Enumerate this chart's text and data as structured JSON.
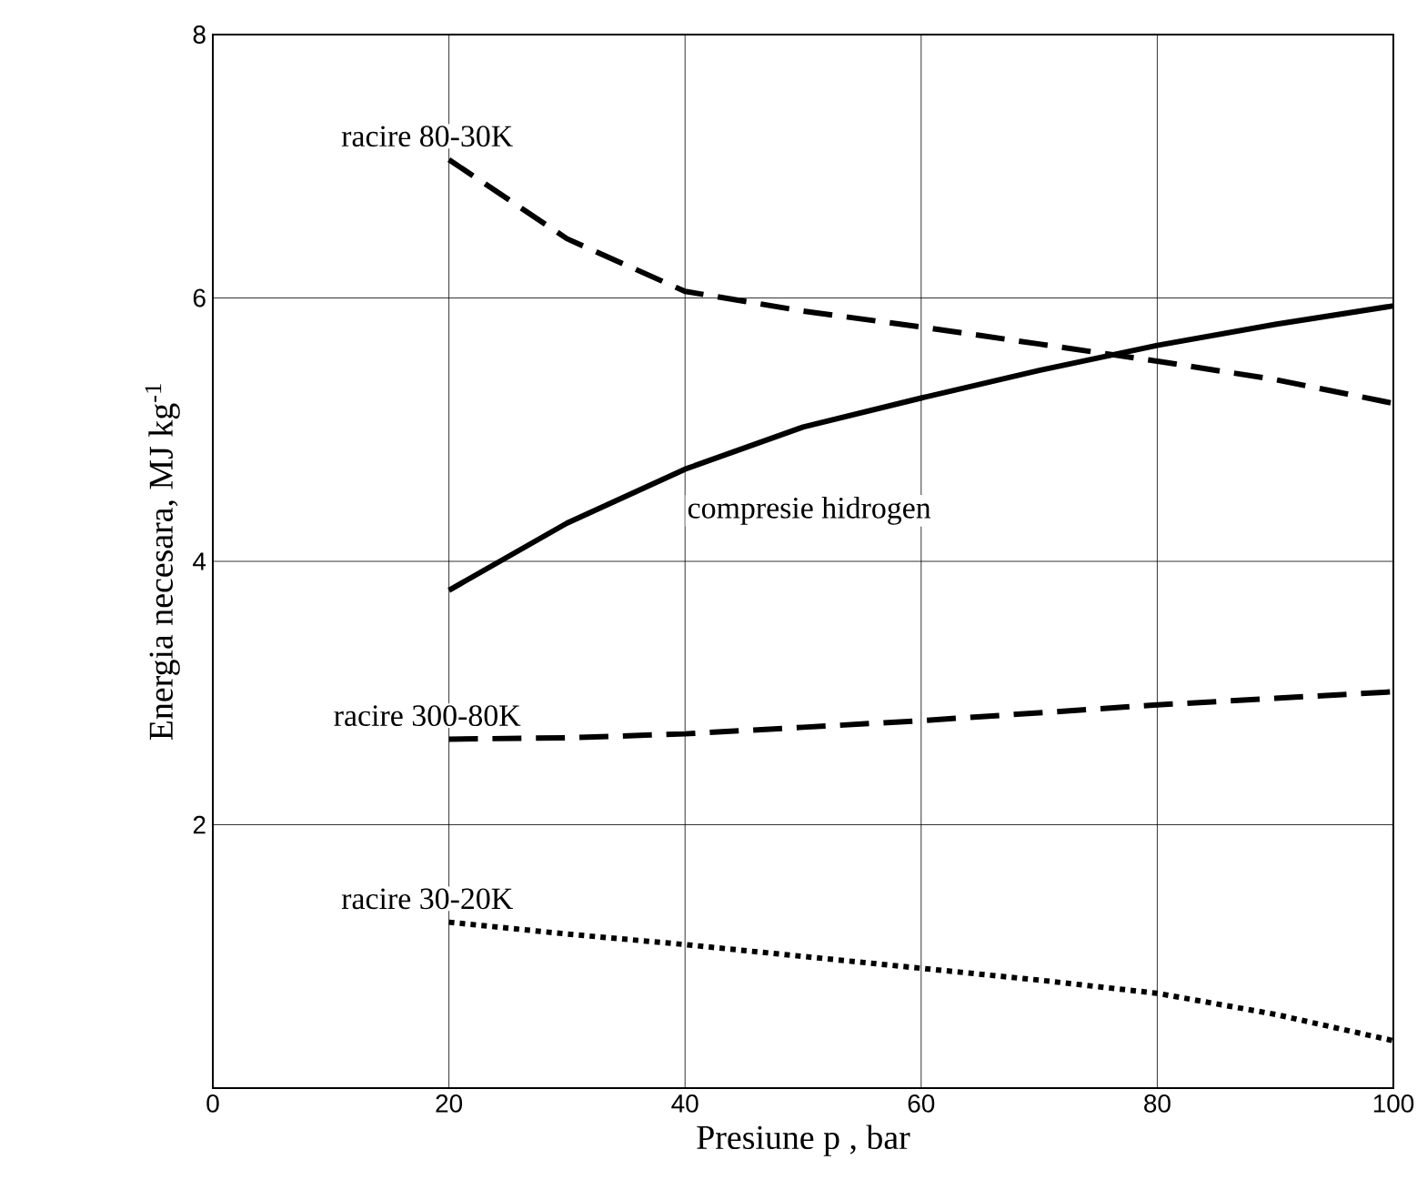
{
  "chart_data": {
    "type": "line",
    "xlabel": "Presiune p , bar",
    "ylabel": "Energia necesara, MJ kg$^{-1}$",
    "xlim": [
      0,
      100
    ],
    "ylim": [
      0,
      8
    ],
    "xticks": [
      0,
      20,
      40,
      60,
      80,
      100
    ],
    "yticks": [
      {
        "value": 0,
        "label": null
      },
      2,
      4,
      6,
      8
    ],
    "grid": true,
    "marker": "none",
    "x": [
      20,
      30,
      40,
      50,
      60,
      70,
      80,
      90,
      100
    ],
    "series": [
      {
        "name": "racire 80-30K",
        "color": "#000000",
        "line_style": "dashed",
        "values": [
          7.05,
          6.45,
          6.05,
          5.9,
          5.78,
          5.65,
          5.52,
          5.38,
          5.2
        ]
      },
      {
        "name": "compresie hidrogen",
        "color": "#000000",
        "line_style": "solid",
        "values": [
          3.78,
          4.29,
          4.7,
          5.02,
          5.24,
          5.45,
          5.64,
          5.8,
          5.94
        ]
      },
      {
        "name": "racire 300-80K",
        "color": "#000000",
        "line_style": "dashed",
        "values": [
          2.65,
          2.66,
          2.69,
          2.74,
          2.79,
          2.85,
          2.91,
          2.96,
          3.01
        ]
      },
      {
        "name": "racire 30-20K",
        "color": "#000000",
        "line_style": "dotted",
        "values": [
          1.26,
          1.17,
          1.09,
          1.0,
          0.91,
          0.82,
          0.72,
          0.56,
          0.36
        ]
      }
    ]
  }
}
